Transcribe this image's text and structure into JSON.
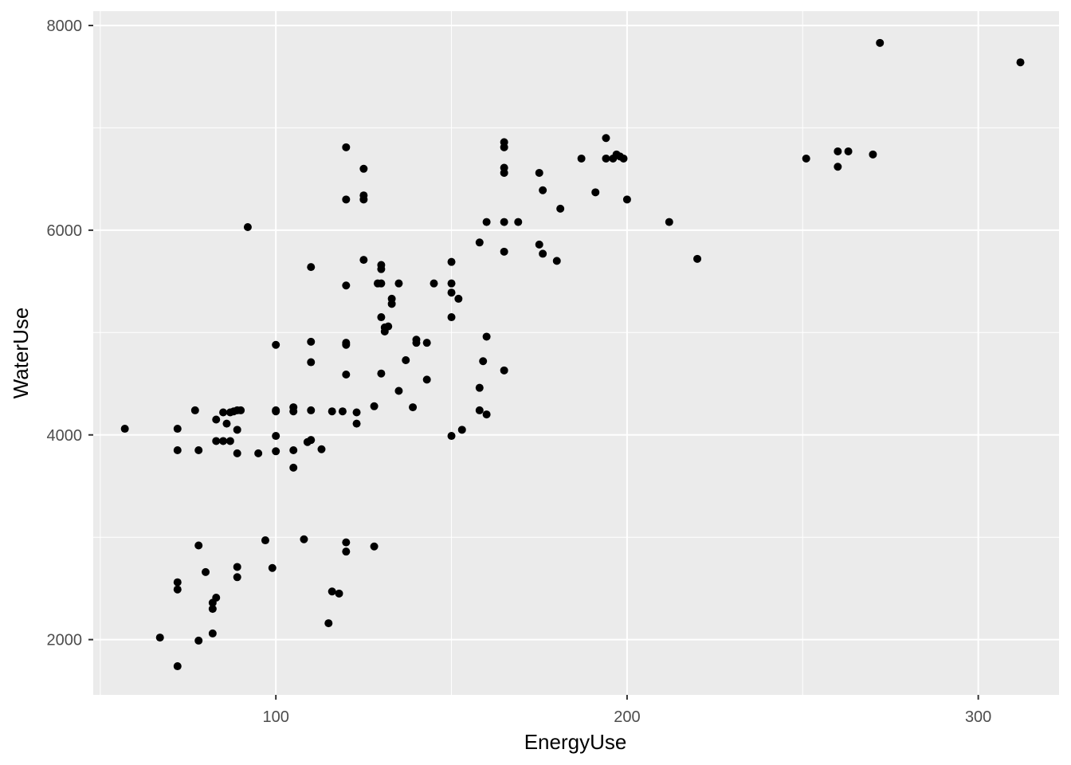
{
  "chart_data": {
    "type": "scatter",
    "title": "",
    "xlabel": "EnergyUse",
    "ylabel": "WaterUse",
    "xlim": [
      48,
      323
    ],
    "ylim": [
      1460,
      8140
    ],
    "x_ticks": [
      100,
      200,
      300
    ],
    "y_ticks": [
      2000,
      4000,
      6000,
      8000
    ],
    "x_minor": [
      50,
      150,
      250
    ],
    "y_minor": [
      3000,
      5000,
      7000
    ],
    "grid": true,
    "legend": "none",
    "colors": {
      "panel": "#ebebeb",
      "grid": "#ffffff",
      "point": "#000000",
      "tick_text": "#4d4d4d",
      "tick_mark": "#333333"
    },
    "points": [
      [
        57,
        4060
      ],
      [
        67,
        2020
      ],
      [
        72,
        1740
      ],
      [
        72,
        2490
      ],
      [
        72,
        2560
      ],
      [
        72,
        3850
      ],
      [
        72,
        4060
      ],
      [
        77,
        4240
      ],
      [
        78,
        1990
      ],
      [
        78,
        2920
      ],
      [
        78,
        3850
      ],
      [
        80,
        2660
      ],
      [
        82,
        2060
      ],
      [
        82,
        2300
      ],
      [
        82,
        2360
      ],
      [
        83,
        2410
      ],
      [
        83,
        3940
      ],
      [
        83,
        4150
      ],
      [
        85,
        3940
      ],
      [
        85,
        4220
      ],
      [
        86,
        4110
      ],
      [
        87,
        3940
      ],
      [
        87,
        4220
      ],
      [
        88,
        4230
      ],
      [
        89,
        4050
      ],
      [
        89,
        4240
      ],
      [
        89,
        3820
      ],
      [
        89,
        2610
      ],
      [
        89,
        2710
      ],
      [
        90,
        4240
      ],
      [
        92,
        6030
      ],
      [
        95,
        3820
      ],
      [
        97,
        2970
      ],
      [
        99,
        2700
      ],
      [
        100,
        4880
      ],
      [
        100,
        4230
      ],
      [
        100,
        4240
      ],
      [
        100,
        3990
      ],
      [
        100,
        3840
      ],
      [
        105,
        4270
      ],
      [
        105,
        4230
      ],
      [
        105,
        3850
      ],
      [
        105,
        3680
      ],
      [
        108,
        2980
      ],
      [
        109,
        3930
      ],
      [
        110,
        3950
      ],
      [
        110,
        4710
      ],
      [
        110,
        4910
      ],
      [
        110,
        5640
      ],
      [
        110,
        4240
      ],
      [
        113,
        3860
      ],
      [
        115,
        2160
      ],
      [
        116,
        2470
      ],
      [
        116,
        4230
      ],
      [
        118,
        2450
      ],
      [
        119,
        4230
      ],
      [
        120,
        2950
      ],
      [
        120,
        2860
      ],
      [
        120,
        4590
      ],
      [
        120,
        4880
      ],
      [
        120,
        4900
      ],
      [
        120,
        5460
      ],
      [
        120,
        6300
      ],
      [
        120,
        6810
      ],
      [
        123,
        4220
      ],
      [
        123,
        4110
      ],
      [
        125,
        5710
      ],
      [
        125,
        6300
      ],
      [
        125,
        6340
      ],
      [
        125,
        6600
      ],
      [
        128,
        4280
      ],
      [
        128,
        2910
      ],
      [
        129,
        5480
      ],
      [
        130,
        4600
      ],
      [
        130,
        5150
      ],
      [
        130,
        5480
      ],
      [
        130,
        5620
      ],
      [
        130,
        5660
      ],
      [
        131,
        5010
      ],
      [
        131,
        5050
      ],
      [
        132,
        5060
      ],
      [
        133,
        5280
      ],
      [
        133,
        5330
      ],
      [
        135,
        5480
      ],
      [
        135,
        4430
      ],
      [
        137,
        4730
      ],
      [
        139,
        4270
      ],
      [
        140,
        4930
      ],
      [
        140,
        4900
      ],
      [
        143,
        4900
      ],
      [
        143,
        4540
      ],
      [
        145,
        5480
      ],
      [
        150,
        3990
      ],
      [
        150,
        5150
      ],
      [
        150,
        5390
      ],
      [
        150,
        5480
      ],
      [
        150,
        5690
      ],
      [
        152,
        5330
      ],
      [
        153,
        4050
      ],
      [
        158,
        4240
      ],
      [
        158,
        4460
      ],
      [
        158,
        5880
      ],
      [
        159,
        4720
      ],
      [
        160,
        4960
      ],
      [
        160,
        4200
      ],
      [
        160,
        6080
      ],
      [
        165,
        4630
      ],
      [
        165,
        5790
      ],
      [
        165,
        6080
      ],
      [
        165,
        6560
      ],
      [
        165,
        6610
      ],
      [
        165,
        6810
      ],
      [
        165,
        6860
      ],
      [
        169,
        6080
      ],
      [
        175,
        5860
      ],
      [
        175,
        6560
      ],
      [
        176,
        5770
      ],
      [
        176,
        6390
      ],
      [
        180,
        5700
      ],
      [
        181,
        6210
      ],
      [
        187,
        6700
      ],
      [
        191,
        6370
      ],
      [
        194,
        6900
      ],
      [
        194,
        6700
      ],
      [
        196,
        6700
      ],
      [
        197,
        6740
      ],
      [
        198,
        6720
      ],
      [
        199,
        6700
      ],
      [
        200,
        6300
      ],
      [
        212,
        6080
      ],
      [
        220,
        5720
      ],
      [
        251,
        6700
      ],
      [
        260,
        6620
      ],
      [
        260,
        6770
      ],
      [
        263,
        6770
      ],
      [
        270,
        6740
      ],
      [
        272,
        7830
      ],
      [
        312,
        7640
      ]
    ]
  }
}
